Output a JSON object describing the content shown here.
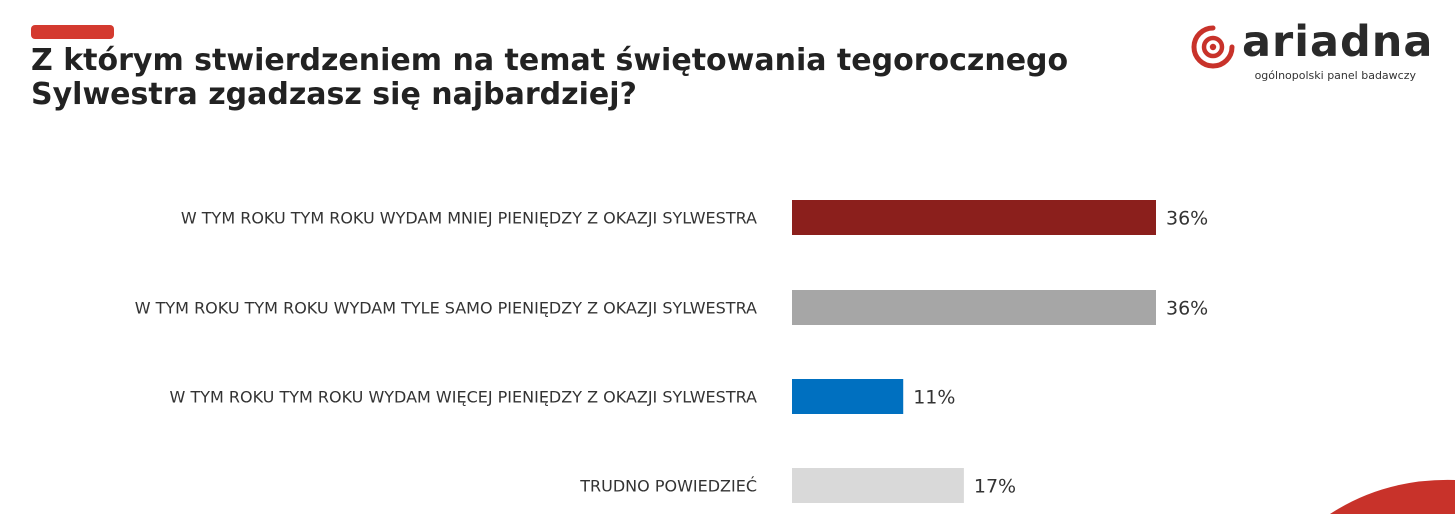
{
  "header": {
    "title_lines": [
      "Z którym stwierdzeniem na temat świętowania tegorocznego",
      "Sylwestra zgadzasz się najbardziej?"
    ],
    "accent_color": "#d43a2f"
  },
  "logo": {
    "brand": "ariadna",
    "tagline": "ogólnopolski panel badawczy",
    "icon": "ariadna-spiral-logo-icon",
    "color": "#c8322a"
  },
  "chart_data": {
    "type": "bar",
    "orientation": "horizontal",
    "categories": [
      "W TYM ROKU TYM ROKU WYDAM MNIEJ PIENIĘDZY Z OKAZJI SYLWESTRA",
      "W TYM ROKU TYM ROKU WYDAM TYLE SAMO PIENIĘDZY Z OKAZJI SYLWESTRA",
      "W TYM ROKU TYM ROKU WYDAM WIĘCEJ PIENIĘDZY Z OKAZJI SYLWESTRA",
      "TRUDNO POWIEDZIEĆ"
    ],
    "values": [
      36,
      36,
      11,
      17
    ],
    "value_labels": [
      "36%",
      "36%",
      "11%",
      "17%"
    ],
    "colors": [
      "#8b1f1c",
      "#a6a6a6",
      "#0070c0",
      "#d9d9d9"
    ],
    "unit": "%",
    "xlim": [
      0,
      100
    ],
    "grid": false,
    "legend": "none"
  }
}
